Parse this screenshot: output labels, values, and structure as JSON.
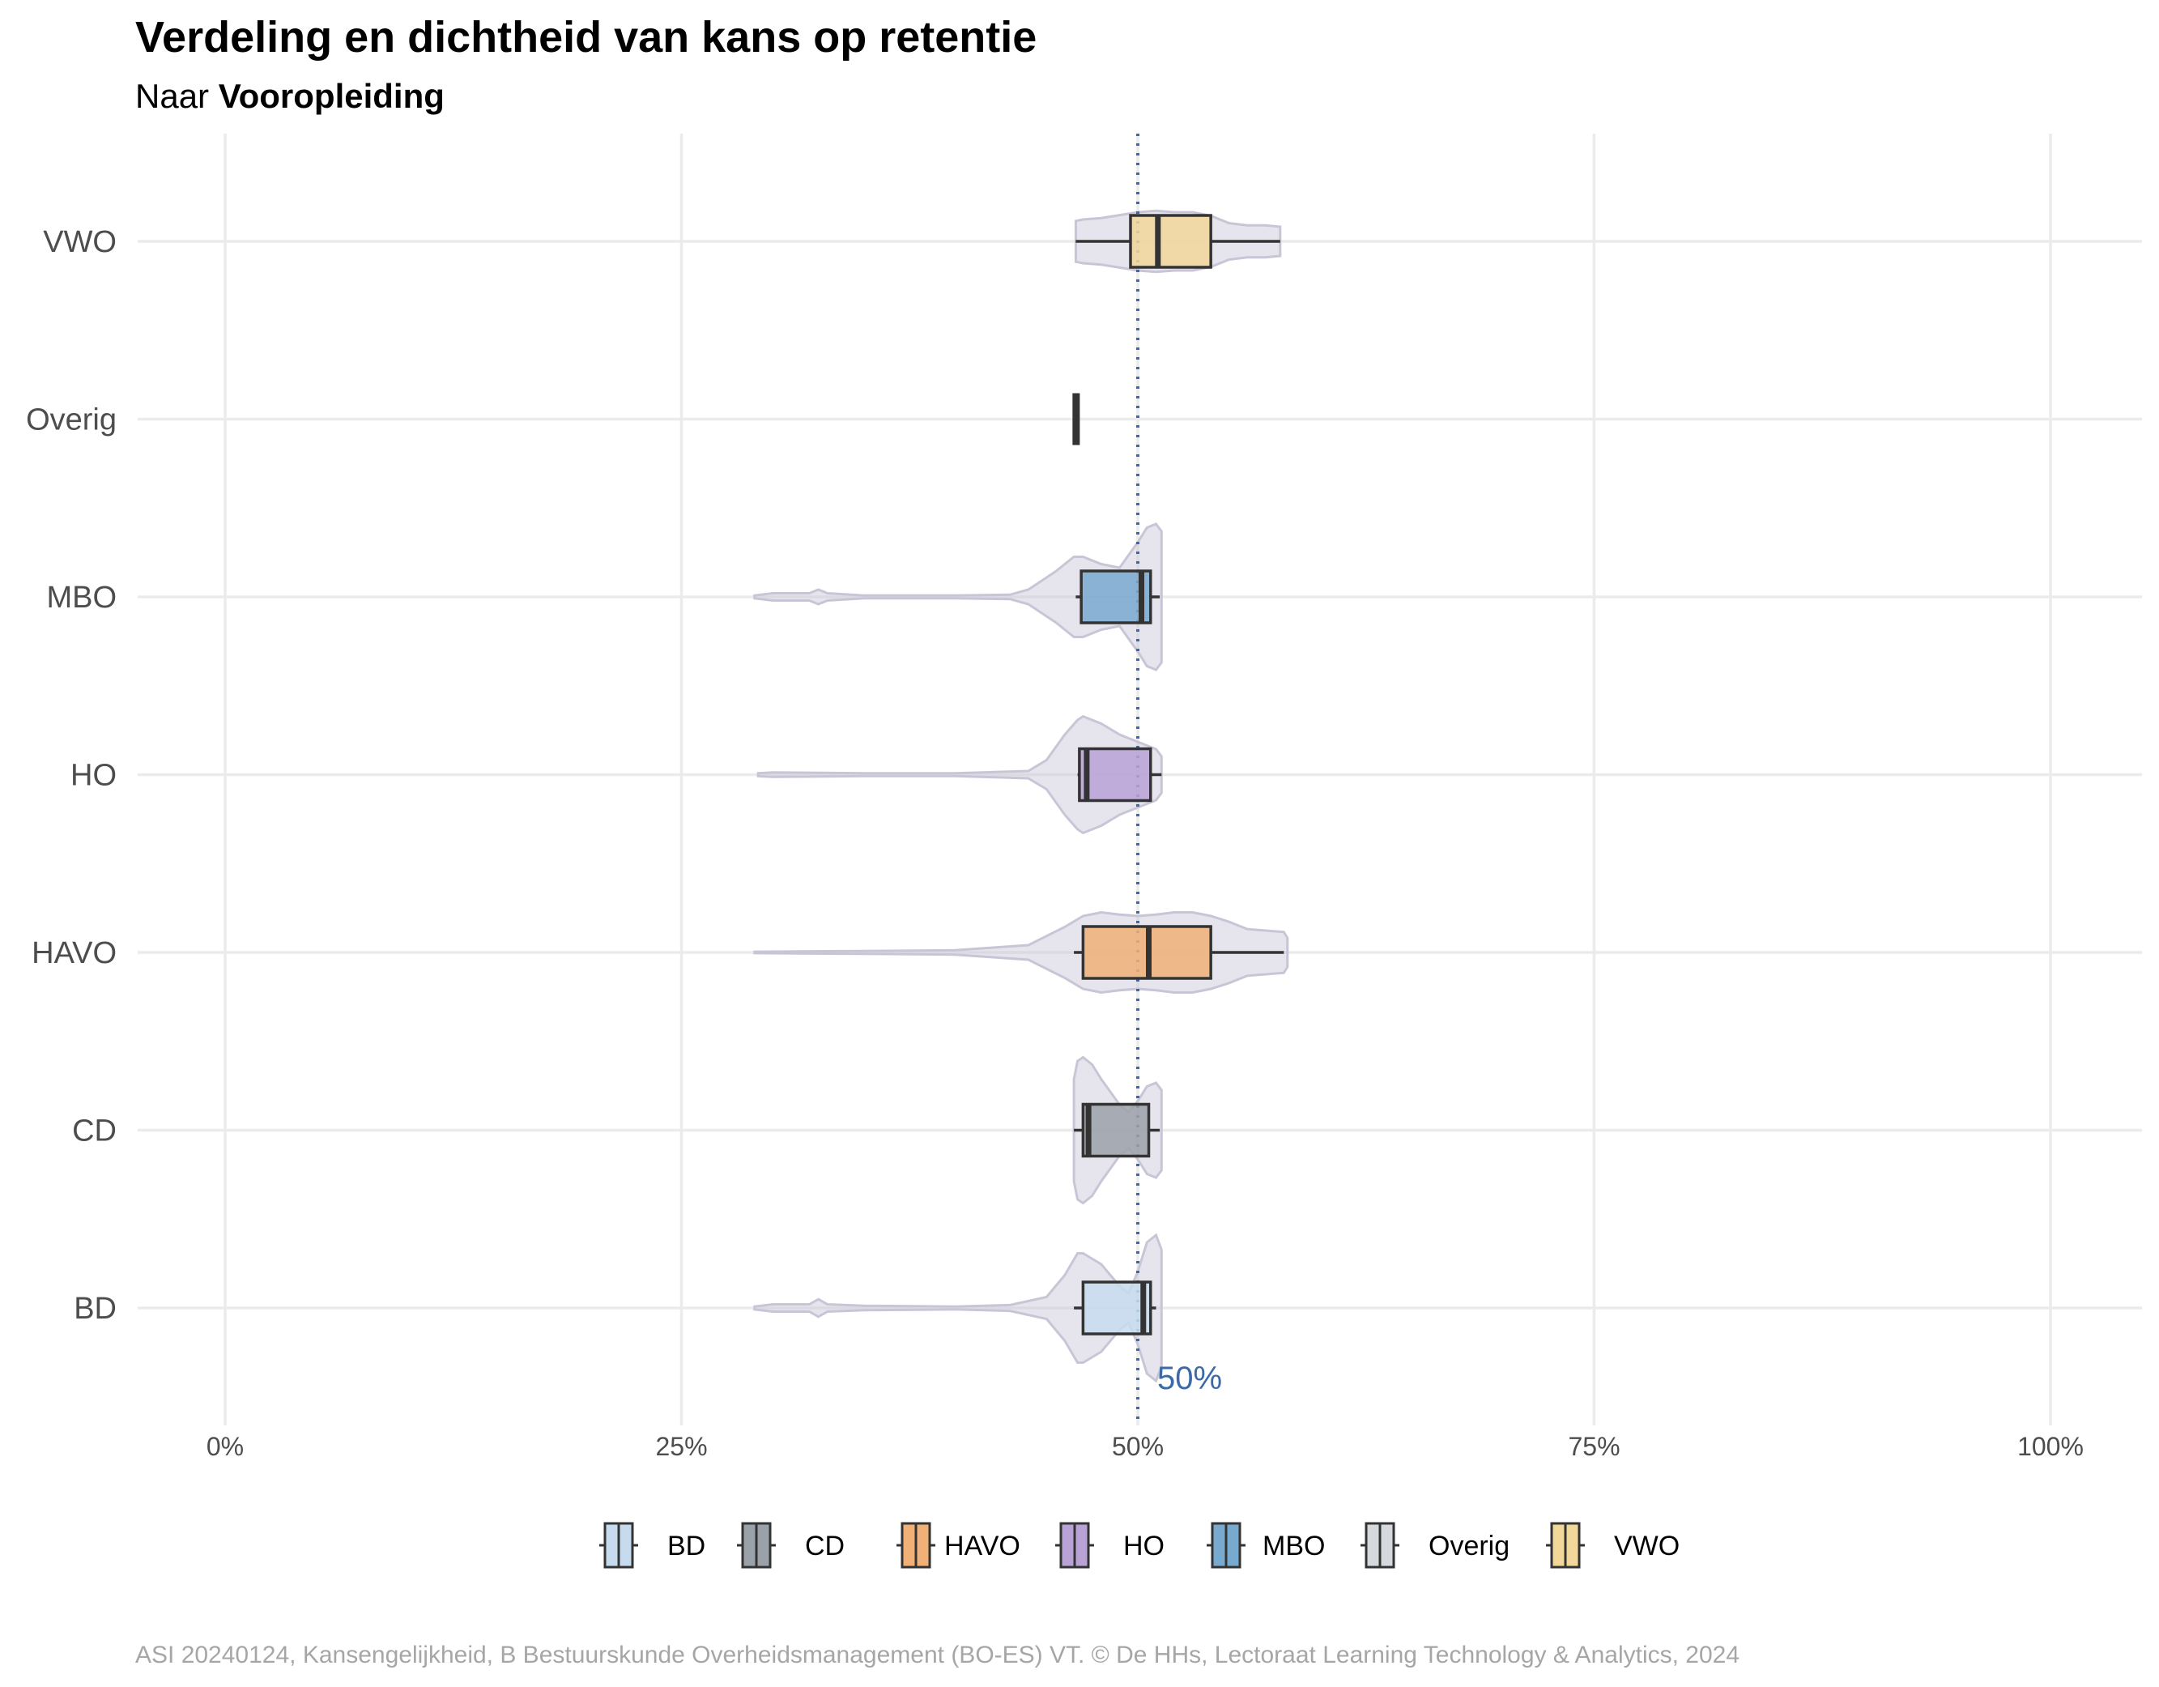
{
  "title": "Verdeling en dichtheid van kans op retentie",
  "subtitle_prefix": "Naar",
  "subtitle_bold": "Vooropleiding",
  "caption": "ASI 20240124, Kansengelijkheid, B Bestuurskunde Overheidsmanagement (BO-ES) VT. © De HHs, Lectoraat Learning Technology & Analytics, 2024",
  "reference_line": {
    "value": 0.5,
    "label": "50%",
    "color": "#3b6aa6"
  },
  "chart_data": {
    "type": "boxplot-violin",
    "orientation": "horizontal",
    "title": "Verdeling en dichtheid van kans op retentie",
    "subtitle": "Naar Vooropleiding",
    "xlim": [
      0,
      1
    ],
    "x_ticks": [
      0,
      0.25,
      0.5,
      0.75,
      1.0
    ],
    "x_tick_labels": [
      "0%",
      "25%",
      "50%",
      "75%",
      "100%"
    ],
    "categories": [
      "BD",
      "CD",
      "HAVO",
      "HO",
      "MBO",
      "Overig",
      "VWO"
    ],
    "grid": true,
    "legend_position": "bottom",
    "violin_color": "#c8c6d6",
    "series": [
      {
        "name": "BD",
        "color": "#c6dcee",
        "box": {
          "min": 0.465,
          "q1": 0.47,
          "median": 0.503,
          "q3": 0.507,
          "max": 0.51
        },
        "range": [
          0.29,
          0.513
        ],
        "density": [
          [
            0.29,
            0.02
          ],
          [
            0.3,
            0.05
          ],
          [
            0.32,
            0.05
          ],
          [
            0.325,
            0.12
          ],
          [
            0.33,
            0.05
          ],
          [
            0.35,
            0.03
          ],
          [
            0.4,
            0.02
          ],
          [
            0.43,
            0.04
          ],
          [
            0.45,
            0.15
          ],
          [
            0.46,
            0.45
          ],
          [
            0.467,
            0.75
          ],
          [
            0.47,
            0.75
          ],
          [
            0.48,
            0.6
          ],
          [
            0.49,
            0.3
          ],
          [
            0.495,
            0.2
          ],
          [
            0.5,
            0.5
          ],
          [
            0.505,
            0.9
          ],
          [
            0.51,
            1.0
          ],
          [
            0.513,
            0.8
          ]
        ]
      },
      {
        "name": "CD",
        "color": "#9ba1a9",
        "box": {
          "min": 0.465,
          "q1": 0.47,
          "median": 0.473,
          "q3": 0.506,
          "max": 0.512
        },
        "range": [
          0.465,
          0.513
        ],
        "density": [
          [
            0.465,
            0.7
          ],
          [
            0.467,
            0.95
          ],
          [
            0.47,
            1.0
          ],
          [
            0.475,
            0.9
          ],
          [
            0.48,
            0.7
          ],
          [
            0.49,
            0.35
          ],
          [
            0.495,
            0.25
          ],
          [
            0.5,
            0.4
          ],
          [
            0.505,
            0.6
          ],
          [
            0.51,
            0.65
          ],
          [
            0.513,
            0.55
          ]
        ]
      },
      {
        "name": "HAVO",
        "color": "#f0b077",
        "box": {
          "min": 0.465,
          "q1": 0.47,
          "median": 0.506,
          "q3": 0.54,
          "max": 0.58
        },
        "range": [
          0.29,
          0.582
        ],
        "density": [
          [
            0.29,
            0.01
          ],
          [
            0.35,
            0.02
          ],
          [
            0.4,
            0.03
          ],
          [
            0.44,
            0.1
          ],
          [
            0.46,
            0.35
          ],
          [
            0.47,
            0.5
          ],
          [
            0.48,
            0.55
          ],
          [
            0.49,
            0.52
          ],
          [
            0.5,
            0.5
          ],
          [
            0.51,
            0.52
          ],
          [
            0.52,
            0.55
          ],
          [
            0.53,
            0.55
          ],
          [
            0.54,
            0.5
          ],
          [
            0.55,
            0.42
          ],
          [
            0.56,
            0.32
          ],
          [
            0.57,
            0.3
          ],
          [
            0.58,
            0.28
          ],
          [
            0.582,
            0.2
          ]
        ]
      },
      {
        "name": "HO",
        "color": "#b9a2d6",
        "box": {
          "min": 0.467,
          "q1": 0.468,
          "median": 0.472,
          "q3": 0.507,
          "max": 0.513
        },
        "range": [
          0.292,
          0.513
        ],
        "density": [
          [
            0.292,
            0.02
          ],
          [
            0.3,
            0.03
          ],
          [
            0.35,
            0.02
          ],
          [
            0.4,
            0.02
          ],
          [
            0.44,
            0.05
          ],
          [
            0.45,
            0.2
          ],
          [
            0.46,
            0.55
          ],
          [
            0.467,
            0.75
          ],
          [
            0.47,
            0.8
          ],
          [
            0.48,
            0.7
          ],
          [
            0.49,
            0.55
          ],
          [
            0.5,
            0.45
          ],
          [
            0.505,
            0.4
          ],
          [
            0.51,
            0.35
          ],
          [
            0.513,
            0.25
          ]
        ]
      },
      {
        "name": "MBO",
        "color": "#78a9cf",
        "box": {
          "min": 0.466,
          "q1": 0.469,
          "median": 0.502,
          "q3": 0.507,
          "max": 0.512
        },
        "range": [
          0.29,
          0.513
        ],
        "density": [
          [
            0.29,
            0.02
          ],
          [
            0.3,
            0.05
          ],
          [
            0.32,
            0.05
          ],
          [
            0.325,
            0.1
          ],
          [
            0.33,
            0.05
          ],
          [
            0.35,
            0.02
          ],
          [
            0.4,
            0.02
          ],
          [
            0.43,
            0.03
          ],
          [
            0.44,
            0.1
          ],
          [
            0.455,
            0.35
          ],
          [
            0.465,
            0.55
          ],
          [
            0.47,
            0.55
          ],
          [
            0.48,
            0.45
          ],
          [
            0.49,
            0.4
          ],
          [
            0.5,
            0.75
          ],
          [
            0.505,
            0.95
          ],
          [
            0.51,
            1.0
          ],
          [
            0.513,
            0.9
          ]
        ]
      },
      {
        "name": "Overig",
        "color": "#d5d8dc",
        "box": {
          "min": 0.466,
          "q1": 0.466,
          "median": 0.466,
          "q3": 0.466,
          "max": 0.466
        },
        "range": [
          0.466,
          0.466
        ],
        "density": []
      },
      {
        "name": "VWO",
        "color": "#f1d79a",
        "box": {
          "min": 0.466,
          "q1": 0.496,
          "median": 0.511,
          "q3": 0.54,
          "max": 0.578
        },
        "range": [
          0.466,
          0.578
        ],
        "density": [
          [
            0.466,
            0.28
          ],
          [
            0.47,
            0.3
          ],
          [
            0.48,
            0.32
          ],
          [
            0.49,
            0.36
          ],
          [
            0.5,
            0.4
          ],
          [
            0.51,
            0.42
          ],
          [
            0.52,
            0.4
          ],
          [
            0.53,
            0.4
          ],
          [
            0.54,
            0.35
          ],
          [
            0.55,
            0.25
          ],
          [
            0.56,
            0.22
          ],
          [
            0.57,
            0.22
          ],
          [
            0.578,
            0.2
          ]
        ]
      }
    ]
  }
}
